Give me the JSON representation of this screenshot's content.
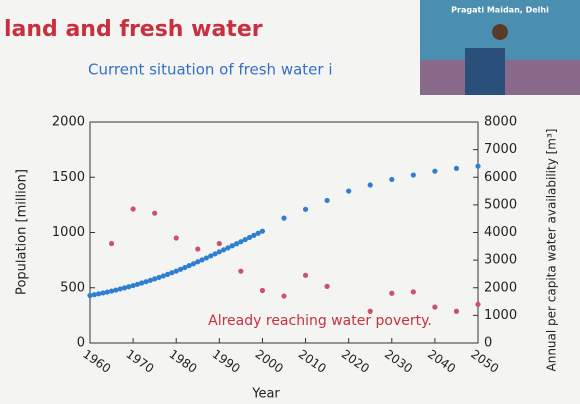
{
  "chart_data": {
    "type": "scatter",
    "title": "land and fresh water",
    "subtitle": "Current situation of fresh water i",
    "photo_caption": "Pragati Maidan, Delhi",
    "annotation": "Already reaching water poverty.",
    "x_label": "Year",
    "y_label": "Population [million]",
    "y2_label": "Annual per capita water availability [m³]",
    "xlim": [
      1960,
      2050
    ],
    "xticks": [
      1960,
      1970,
      1980,
      1990,
      2000,
      2010,
      2020,
      2030,
      2040,
      2050
    ],
    "ylim": [
      0,
      2000
    ],
    "yticks": [
      0,
      500,
      1000,
      1500,
      2000
    ],
    "y2lim": [
      0,
      8000
    ],
    "y2ticks": [
      0,
      1000,
      2000,
      3000,
      4000,
      5000,
      6000,
      7000,
      8000
    ],
    "series": [
      {
        "color": "#2f7fd0",
        "x": [
          1960,
          1961,
          1962,
          1963,
          1964,
          1965,
          1966,
          1967,
          1968,
          1969,
          1970,
          1971,
          1972,
          1973,
          1974,
          1975,
          1976,
          1977,
          1978,
          1979,
          1980,
          1981,
          1982,
          1983,
          1984,
          1985,
          1986,
          1987,
          1988,
          1989,
          1990,
          1991,
          1992,
          1993,
          1994,
          1995,
          1996,
          1997,
          1998,
          1999,
          2000,
          2005,
          2010,
          2015,
          2020,
          2025,
          2030,
          2035,
          2040,
          2045,
          2050
        ],
        "values": [
          430,
          437,
          445,
          453,
          461,
          470,
          479,
          489,
          499,
          509,
          520,
          531,
          543,
          555,
          567,
          580,
          593,
          607,
          621,
          636,
          651,
          667,
          683,
          700,
          717,
          735,
          752,
          770,
          788,
          806,
          825,
          843,
          861,
          880,
          898,
          917,
          936,
          955,
          974,
          993,
          1012,
          1130,
          1210,
          1290,
          1375,
          1430,
          1480,
          1520,
          1555,
          1580,
          1600
        ]
      },
      {
        "color": "#d0506a",
        "axis": "y2",
        "x": [
          1965,
          1970,
          1975,
          1980,
          1985,
          1990,
          1995,
          2000,
          2005,
          2010,
          2015,
          2025,
          2030,
          2035,
          2040,
          2045,
          2050
        ],
        "values": [
          3600,
          4850,
          4700,
          3800,
          3400,
          3600,
          2600,
          1900,
          1700,
          2450,
          2050,
          1150,
          1800,
          1850,
          1300,
          1150,
          1400
        ]
      }
    ]
  }
}
